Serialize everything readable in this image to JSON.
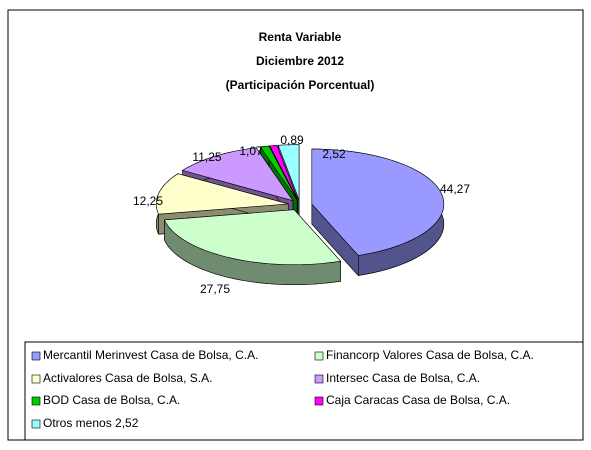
{
  "chart_data": {
    "type": "pie",
    "title": [
      "Renta Variable",
      "Diciembre 2012",
      "(Participación Porcentual)"
    ],
    "categories": [
      "Mercantil Merinvest Casa de Bolsa, C.A.",
      "Financorp Valores Casa de Bolsa, C.A.",
      "Activalores Casa de Bolsa, S.A.",
      "Intersec Casa de Bolsa, C.A.",
      "BOD Casa de Bolsa, C.A.",
      "Caja Caracas Casa de Bolsa, C.A.",
      "Otros menos  2,52"
    ],
    "values": [
      44.27,
      27.75,
      12.25,
      11.25,
      1.07,
      0.89,
      2.52
    ],
    "value_labels": [
      "44,27",
      "27,75",
      "12,25",
      "11,25",
      "1,07",
      "0,89",
      "2,52"
    ],
    "colors": [
      "#9999ff",
      "#ccffcc",
      "#ffffcc",
      "#cc99ff",
      "#00cc00",
      "#ff00ff",
      "#99ffff"
    ]
  }
}
